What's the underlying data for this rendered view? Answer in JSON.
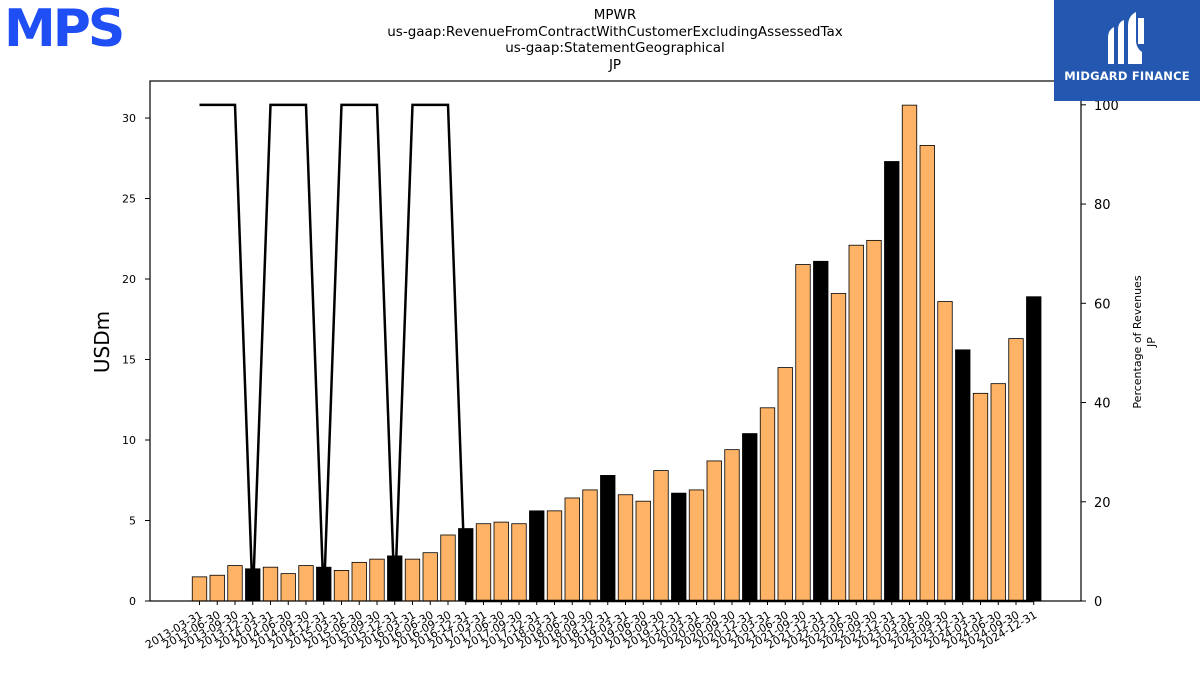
{
  "header": {
    "title_lines": [
      "MPWR",
      "us-gaap:RevenueFromContractWithCustomerExcludingAssessedTax",
      "us-gaap:StatementGeographical",
      "JP"
    ]
  },
  "logos": {
    "left_logo_text": "MPS",
    "left_logo_color": "#1f4ef5",
    "right_logo_text": "MIDGARD FINANCE",
    "right_logo_bg": "#2458b0"
  },
  "chart_data": {
    "type": "bar",
    "ylabel": "USDm",
    "y2label_lines": [
      "Percentage of Revenues",
      "JP"
    ],
    "ylim": [
      0,
      32.3
    ],
    "y2lim": [
      0,
      104.8
    ],
    "yticks": [
      0,
      5,
      10,
      15,
      20,
      25,
      30
    ],
    "y2ticks": [
      0,
      20,
      40,
      60,
      80,
      100
    ],
    "categories": [
      "2013-03-31",
      "2013-06-30",
      "2013-09-30",
      "2013-12-31",
      "2014-03-31",
      "2014-06-30",
      "2014-09-30",
      "2014-12-31",
      "2015-03-31",
      "2015-06-30",
      "2015-09-30",
      "2015-12-31",
      "2016-03-31",
      "2016-06-30",
      "2016-09-30",
      "2016-12-31",
      "2017-03-31",
      "2017-06-30",
      "2017-09-30",
      "2017-12-31",
      "2018-03-31",
      "2018-06-30",
      "2018-09-30",
      "2018-12-31",
      "2019-03-31",
      "2019-06-30",
      "2019-09-30",
      "2019-12-31",
      "2020-03-31",
      "2020-06-30",
      "2020-09-30",
      "2020-12-31",
      "2021-03-31",
      "2021-06-30",
      "2021-09-30",
      "2021-12-31",
      "2022-03-31",
      "2022-06-30",
      "2022-09-30",
      "2022-12-31",
      "2023-03-31",
      "2023-06-30",
      "2023-09-30",
      "2023-12-31",
      "2024-03-31",
      "2024-06-30",
      "2024-09-30",
      "2024-12-31"
    ],
    "series": [
      {
        "values": [
          1.5,
          1.6,
          2.2,
          2.0,
          2.1,
          1.7,
          2.2,
          2.1,
          1.9,
          2.4,
          2.6,
          2.8,
          2.6,
          3.0,
          4.1,
          4.5,
          4.8,
          4.9,
          4.8,
          5.6,
          5.6,
          6.4,
          6.9,
          7.8,
          6.6,
          6.2,
          8.1,
          6.7,
          6.9,
          8.7,
          9.4,
          10.4,
          12.0,
          14.5,
          20.9,
          21.1,
          19.1,
          22.1,
          22.4,
          27.3,
          30.8,
          28.3,
          18.6,
          15.6,
          12.9,
          13.5,
          16.3,
          18.9
        ],
        "annual_flags": [
          false,
          false,
          false,
          true,
          false,
          false,
          false,
          true,
          false,
          false,
          false,
          true,
          false,
          false,
          false,
          true,
          false,
          false,
          false,
          true,
          false,
          false,
          false,
          true,
          false,
          false,
          false,
          true,
          false,
          false,
          false,
          true,
          false,
          false,
          false,
          true,
          false,
          false,
          false,
          true,
          false,
          false,
          false,
          true,
          false,
          false,
          false,
          true
        ]
      },
      {
        "percent_values": [
          100,
          100,
          100,
          0,
          100,
          100,
          100,
          0,
          100,
          100,
          100,
          0,
          100,
          100,
          100,
          0,
          0,
          0,
          0,
          0,
          0,
          0,
          0,
          0,
          0,
          0,
          0,
          0,
          0,
          0,
          0,
          0,
          0,
          0,
          0,
          0,
          0,
          0,
          0,
          0,
          0,
          0,
          0,
          0,
          0,
          0,
          0,
          0
        ]
      }
    ],
    "colors": {
      "quarter_bar": "#ffb366",
      "annual_bar": "#000000",
      "line": "#000000"
    }
  }
}
